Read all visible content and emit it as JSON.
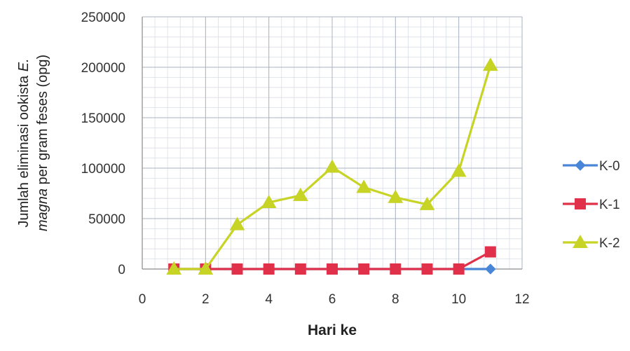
{
  "chart_data": {
    "type": "line",
    "title": "",
    "xlabel": "Hari  ke",
    "ylabel_line1_prefix": "Jumlah eliminasi ookista ",
    "ylabel_line1_italic": "E.",
    "ylabel_line2_italic": "magna",
    "ylabel_line2_suffix": " per gram feses (opg)",
    "xlim": [
      0,
      12
    ],
    "ylim": [
      0,
      250000
    ],
    "x_ticks": [
      0,
      2,
      4,
      6,
      8,
      10,
      12
    ],
    "y_ticks": [
      0,
      50000,
      100000,
      150000,
      200000,
      250000
    ],
    "x_tick_labels": [
      "0",
      "2",
      "4",
      "6",
      "8",
      "10",
      "12"
    ],
    "y_tick_labels": [
      "0",
      "50000",
      "100000",
      "150000",
      "200000",
      "250000"
    ],
    "grid": true,
    "legend_position": "right",
    "x": [
      1,
      2,
      3,
      4,
      5,
      6,
      7,
      8,
      9,
      10,
      11
    ],
    "series": [
      {
        "name": "K-0",
        "color": "#4a86d8",
        "marker": "diamond",
        "values": [
          0,
          0,
          0,
          0,
          0,
          0,
          0,
          0,
          0,
          0,
          0
        ]
      },
      {
        "name": "K-1",
        "color": "#e0304a",
        "marker": "square",
        "values": [
          0,
          0,
          0,
          0,
          0,
          0,
          0,
          0,
          0,
          0,
          17000
        ]
      },
      {
        "name": "K-2",
        "color": "#c7d325",
        "marker": "triangle",
        "values": [
          0,
          0,
          44000,
          66000,
          73000,
          101000,
          81000,
          71000,
          64000,
          97000,
          202000
        ]
      }
    ]
  }
}
